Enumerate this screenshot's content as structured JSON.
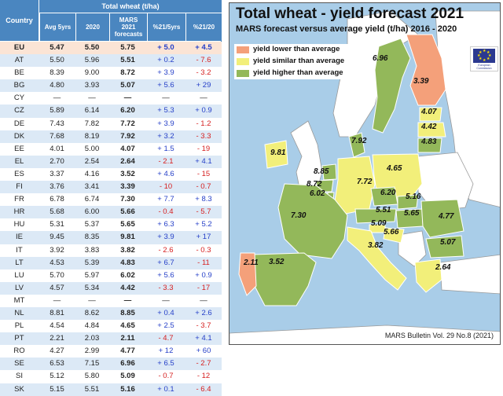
{
  "table": {
    "header": {
      "country": "Country",
      "group": "Total wheat (t/ha)",
      "columns": [
        "Avg 5yrs",
        "2020",
        "MARS 2021 forecasts",
        "%21/5yrs",
        "%21/20"
      ]
    },
    "rows": [
      {
        "country": "EU",
        "avg": "5.47",
        "y2020": "5.50",
        "mars": "5.75",
        "p5": "+ 5.0",
        "p20": "+ 4.5"
      },
      {
        "country": "AT",
        "avg": "5.50",
        "y2020": "5.96",
        "mars": "5.51",
        "p5": "+ 0.2",
        "p20": "- 7.6"
      },
      {
        "country": "BE",
        "avg": "8.39",
        "y2020": "9.00",
        "mars": "8.72",
        "p5": "+ 3.9",
        "p20": "- 3.2"
      },
      {
        "country": "BG",
        "avg": "4.80",
        "y2020": "3.93",
        "mars": "5.07",
        "p5": "+ 5.6",
        "p20": "+ 29"
      },
      {
        "country": "CY",
        "avg": "—",
        "y2020": "—",
        "mars": "—",
        "p5": "—",
        "p20": "—"
      },
      {
        "country": "CZ",
        "avg": "5.89",
        "y2020": "6.14",
        "mars": "6.20",
        "p5": "+ 5.3",
        "p20": "+ 0.9"
      },
      {
        "country": "DE",
        "avg": "7.43",
        "y2020": "7.82",
        "mars": "7.72",
        "p5": "+ 3.9",
        "p20": "- 1.2"
      },
      {
        "country": "DK",
        "avg": "7.68",
        "y2020": "8.19",
        "mars": "7.92",
        "p5": "+ 3.2",
        "p20": "- 3.3"
      },
      {
        "country": "EE",
        "avg": "4.01",
        "y2020": "5.00",
        "mars": "4.07",
        "p5": "+ 1.5",
        "p20": "- 19"
      },
      {
        "country": "EL",
        "avg": "2.70",
        "y2020": "2.54",
        "mars": "2.64",
        "p5": "- 2.1",
        "p20": "+ 4.1"
      },
      {
        "country": "ES",
        "avg": "3.37",
        "y2020": "4.16",
        "mars": "3.52",
        "p5": "+ 4.6",
        "p20": "- 15"
      },
      {
        "country": "FI",
        "avg": "3.76",
        "y2020": "3.41",
        "mars": "3.39",
        "p5": "- 10",
        "p20": "- 0.7"
      },
      {
        "country": "FR",
        "avg": "6.78",
        "y2020": "6.74",
        "mars": "7.30",
        "p5": "+ 7.7",
        "p20": "+ 8.3"
      },
      {
        "country": "HR",
        "avg": "5.68",
        "y2020": "6.00",
        "mars": "5.66",
        "p5": "- 0.4",
        "p20": "- 5.7"
      },
      {
        "country": "HU",
        "avg": "5.31",
        "y2020": "5.37",
        "mars": "5.65",
        "p5": "+ 6.3",
        "p20": "+ 5.2"
      },
      {
        "country": "IE",
        "avg": "9.45",
        "y2020": "8.35",
        "mars": "9.81",
        "p5": "+ 3.9",
        "p20": "+ 17"
      },
      {
        "country": "IT",
        "avg": "3.92",
        "y2020": "3.83",
        "mars": "3.82",
        "p5": "- 2.6",
        "p20": "- 0.3"
      },
      {
        "country": "LT",
        "avg": "4.53",
        "y2020": "5.39",
        "mars": "4.83",
        "p5": "+ 6.7",
        "p20": "- 11"
      },
      {
        "country": "LU",
        "avg": "5.70",
        "y2020": "5.97",
        "mars": "6.02",
        "p5": "+ 5.6",
        "p20": "+ 0.9"
      },
      {
        "country": "LV",
        "avg": "4.57",
        "y2020": "5.34",
        "mars": "4.42",
        "p5": "- 3.3",
        "p20": "- 17"
      },
      {
        "country": "MT",
        "avg": "—",
        "y2020": "—",
        "mars": "—",
        "p5": "—",
        "p20": "—"
      },
      {
        "country": "NL",
        "avg": "8.81",
        "y2020": "8.62",
        "mars": "8.85",
        "p5": "+ 0.4",
        "p20": "+ 2.6"
      },
      {
        "country": "PL",
        "avg": "4.54",
        "y2020": "4.84",
        "mars": "4.65",
        "p5": "+ 2.5",
        "p20": "- 3.7"
      },
      {
        "country": "PT",
        "avg": "2.21",
        "y2020": "2.03",
        "mars": "2.11",
        "p5": "- 4.7",
        "p20": "+ 4.1"
      },
      {
        "country": "RO",
        "avg": "4.27",
        "y2020": "2.99",
        "mars": "4.77",
        "p5": "+ 12",
        "p20": "+ 60"
      },
      {
        "country": "SE",
        "avg": "6.53",
        "y2020": "7.15",
        "mars": "6.96",
        "p5": "+ 6.5",
        "p20": "- 2.7"
      },
      {
        "country": "SI",
        "avg": "5.12",
        "y2020": "5.80",
        "mars": "5.09",
        "p5": "- 0.7",
        "p20": "- 12"
      },
      {
        "country": "SK",
        "avg": "5.15",
        "y2020": "5.51",
        "mars": "5.16",
        "p5": "+ 0.1",
        "p20": "- 6.4"
      }
    ]
  },
  "map": {
    "title": "Total wheat - yield forecast 2021",
    "subtitle": "MARS forecast versus average yield (t/ha) 2016 - 2020",
    "legend": [
      {
        "label": "yield lower than average",
        "color": "#f4a07a"
      },
      {
        "label": "yield similar than average",
        "color": "#f2ef7a"
      },
      {
        "label": "yield higher than average",
        "color": "#93b85a"
      }
    ],
    "colors": {
      "sea": "#a9cde8",
      "nonEU": "#ffffff",
      "border": "#9a9a9a"
    },
    "eu_logo_caption": "European Commission",
    "labels": [
      {
        "id": "SE",
        "value": "6.96"
      },
      {
        "id": "FI",
        "value": "3.39"
      },
      {
        "id": "EE",
        "value": "4.07"
      },
      {
        "id": "LV",
        "value": "4.42"
      },
      {
        "id": "LT",
        "value": "4.83"
      },
      {
        "id": "IE",
        "value": "9.81"
      },
      {
        "id": "DK",
        "value": "7.92"
      },
      {
        "id": "NL",
        "value": "8.85"
      },
      {
        "id": "BE",
        "value": "8.72"
      },
      {
        "id": "LU",
        "value": "6.02"
      },
      {
        "id": "DE",
        "value": "7.72"
      },
      {
        "id": "PL",
        "value": "4.65"
      },
      {
        "id": "CZ",
        "value": "6.20"
      },
      {
        "id": "SK",
        "value": "5.16"
      },
      {
        "id": "AT",
        "value": "5.51"
      },
      {
        "id": "HU",
        "value": "5.65"
      },
      {
        "id": "RO",
        "value": "4.77"
      },
      {
        "id": "SI",
        "value": "5.09"
      },
      {
        "id": "HR",
        "value": "5.66"
      },
      {
        "id": "FR",
        "value": "7.30"
      },
      {
        "id": "IT",
        "value": "3.82"
      },
      {
        "id": "BG",
        "value": "5.07"
      },
      {
        "id": "PT",
        "value": "2.11"
      },
      {
        "id": "ES",
        "value": "3.52"
      },
      {
        "id": "EL",
        "value": "2.64"
      }
    ],
    "source": "MARS Bulletin Vol. 29 No.8 (2021)"
  }
}
